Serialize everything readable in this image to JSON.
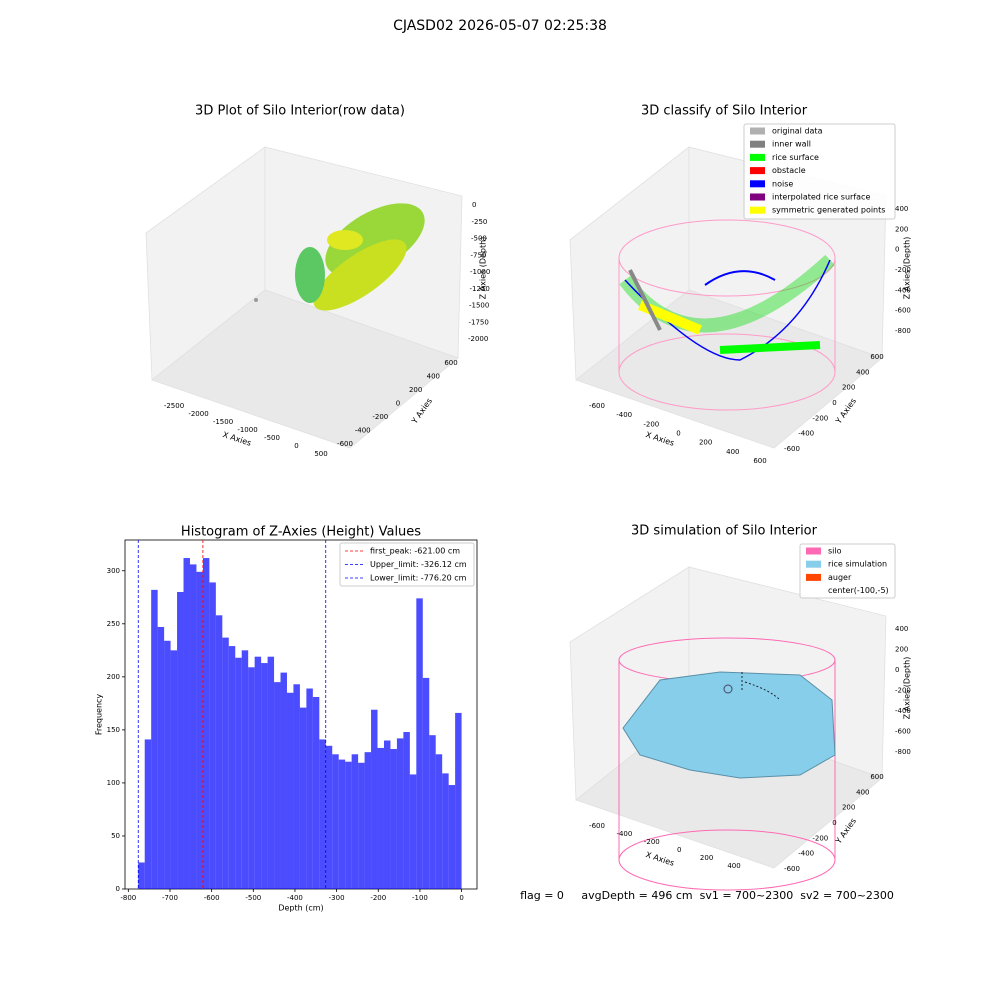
{
  "title": "CJASD02 2026-05-07 02:25:38",
  "footer": "flag = 0     avgDepth = 496 cm  sv1 = 700~2300  sv2 = 700~2300",
  "chart_data": [
    {
      "type": "scatter3d",
      "title": "3D Plot of Silo Interior(row data)",
      "xlabel": "X Axies",
      "ylabel": "Y Axies",
      "zlabel": "Z Axies (Depth)",
      "xticks": [
        -2500,
        -2000,
        -1500,
        -1000,
        -500,
        0,
        500
      ],
      "yticks": [
        -600,
        -400,
        -200,
        0,
        200,
        400,
        600
      ],
      "zticks": [
        0,
        -250,
        -500,
        -750,
        -1000,
        -1250,
        -1500,
        -1750,
        -2000
      ]
    },
    {
      "type": "scatter3d",
      "title": "3D classify of Silo Interior",
      "xlabel": "X Axies",
      "ylabel": "Y Axies",
      "zlabel": "Z Axies (Depth)",
      "xticks": [
        -600,
        -400,
        -200,
        0,
        200,
        400,
        600
      ],
      "yticks": [
        -600,
        -400,
        -200,
        0,
        200,
        400,
        600
      ],
      "zticks": [
        400,
        200,
        0,
        -200,
        -400,
        -600,
        -800
      ],
      "legend": [
        {
          "name": "original data",
          "color": "#b0b0b0"
        },
        {
          "name": "inner wall",
          "color": "#808080"
        },
        {
          "name": "rice surface",
          "color": "#00ff00"
        },
        {
          "name": "obstacle",
          "color": "#ff0000"
        },
        {
          "name": "noise",
          "color": "#0000ff"
        },
        {
          "name": "interpolated rice surface",
          "color": "#800080"
        },
        {
          "name": "symmetric generated points",
          "color": "#ffff00"
        }
      ]
    },
    {
      "type": "histogram",
      "title": "Histogram of Z-Axies (Height) Values",
      "xlabel": "Depth (cm)",
      "ylabel": "Frequency",
      "color": "#0000ff",
      "alpha": 0.7,
      "bins": [
        -776.2,
        -760.68,
        -745.15,
        -729.63,
        -714.1,
        -698.58,
        -683.06,
        -667.53,
        -652.01,
        -636.48,
        -620.96,
        -605.44,
        -589.91,
        -574.39,
        -558.86,
        -543.34,
        -527.82,
        -512.29,
        -496.77,
        -481.24,
        -465.72,
        -450.2,
        -434.67,
        -419.15,
        -403.62,
        -388.1,
        -372.58,
        -357.05,
        -341.53,
        -326.0,
        -310.48,
        -294.96,
        -279.43,
        -263.91,
        -248.38,
        -232.86,
        -217.34,
        -201.81,
        -186.29,
        -170.76,
        -155.24,
        -139.72,
        -124.19,
        -108.67,
        -93.14,
        -77.62,
        -62.1,
        -46.57,
        -31.05,
        -15.52,
        0
      ],
      "values": [
        25,
        141,
        282,
        247,
        234,
        225,
        280,
        312,
        306,
        299,
        312,
        289,
        258,
        237,
        229,
        218,
        225,
        209,
        219,
        213,
        219,
        195,
        204,
        185,
        193,
        171,
        189,
        181,
        141,
        135,
        127,
        122,
        120,
        127,
        119,
        129,
        169,
        133,
        140,
        132,
        142,
        148,
        108,
        274,
        199,
        145,
        127,
        109,
        98,
        166
      ],
      "xlim": [
        -808,
        37
      ],
      "ylim": [
        0,
        329
      ],
      "xticks": [
        -800,
        -700,
        -600,
        -500,
        -400,
        -300,
        -200,
        -100,
        0
      ],
      "yticks": [
        0,
        50,
        100,
        150,
        200,
        250,
        300
      ],
      "lines": [
        {
          "name": "first_peak: -621.00 cm",
          "value": -621.0,
          "color": "#ff0000"
        },
        {
          "name": "Upper_limit: -326.12 cm",
          "value": -326.12,
          "color": "#0000ff"
        },
        {
          "name": "Lower_limit: -776.20 cm",
          "value": -776.2,
          "color": "#0000ff"
        }
      ],
      "legend_loc": "upper right"
    },
    {
      "type": "surface3d",
      "title": "3D simulation of Silo Interior",
      "xlabel": "X Axies",
      "ylabel": "Y Axies",
      "zlabel": "Z Axies (Depth)",
      "xticks": [
        -600,
        -400,
        -200,
        0,
        200,
        400
      ],
      "yticks": [
        -600,
        -400,
        -200,
        0,
        200,
        400,
        600
      ],
      "zticks": [
        400,
        200,
        0,
        -200,
        -400,
        -600,
        -800
      ],
      "legend": [
        {
          "name": "silo",
          "color": "#ff69b4"
        },
        {
          "name": "rice simulation",
          "color": "#87ceeb"
        },
        {
          "name": "auger",
          "color": "#ff4500"
        },
        {
          "name": "center(-100,-5)"
        }
      ]
    }
  ]
}
